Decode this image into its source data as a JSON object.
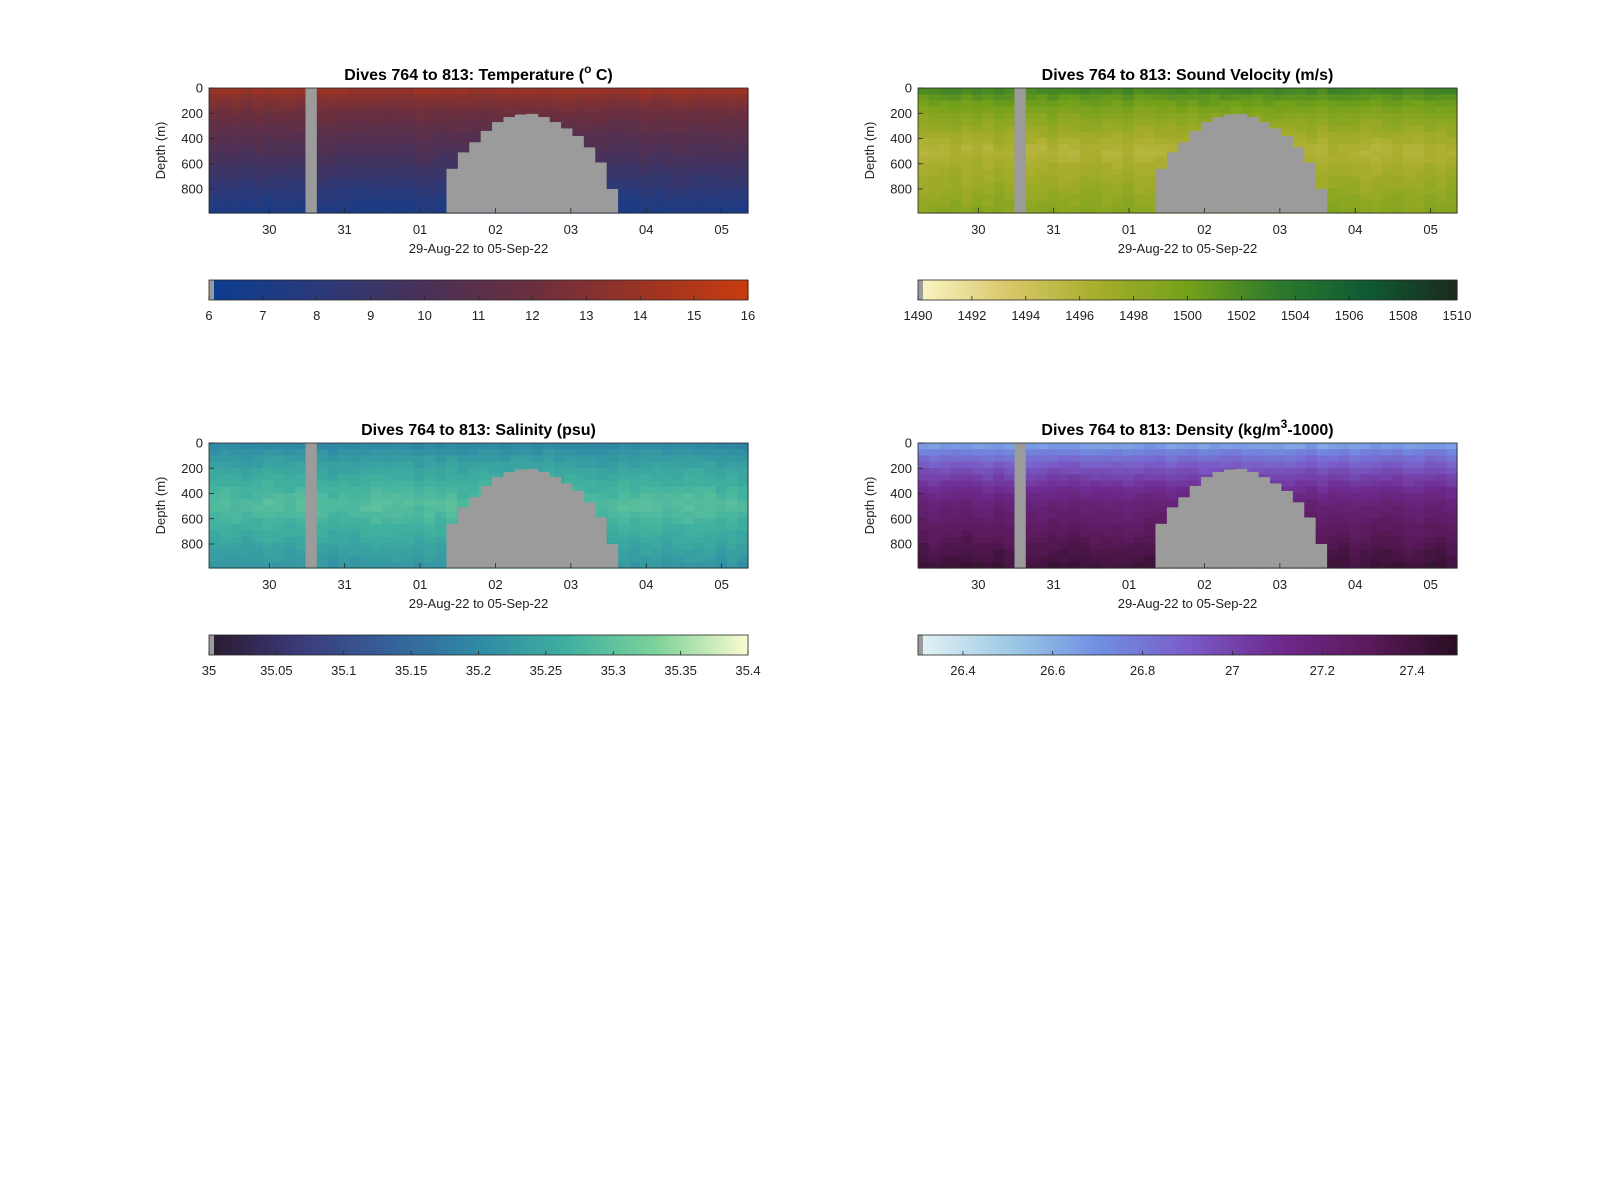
{
  "figure": {
    "mask_color": "#9b9b9b",
    "background": "#ffffff"
  },
  "chart_data": [
    {
      "type": "heatmap",
      "variable": "temperature",
      "title_main": "Dives 764 to 813: Temperature (",
      "title_sup": "o",
      "title_tail": " C)",
      "xlabel": "29-Aug-22 to 05-Sep-22",
      "ylabel": "Depth (m)",
      "x_range_days": [
        29.2,
        36.35
      ],
      "x_ticks": [
        30,
        31,
        32,
        33,
        34,
        35,
        36
      ],
      "x_tick_labels": [
        "30",
        "31",
        "01",
        "02",
        "03",
        "04",
        "05"
      ],
      "y_range": [
        0,
        990
      ],
      "y_ticks": [
        0,
        200,
        400,
        600,
        800
      ],
      "y_tick_labels": [
        "0",
        "200",
        "400",
        "600",
        "800"
      ],
      "colorbar": {
        "range": [
          6,
          16
        ],
        "ticks": [
          6,
          7,
          8,
          9,
          10,
          11,
          12,
          13,
          14,
          15,
          16
        ],
        "tick_labels": [
          "6",
          "7",
          "8",
          "9",
          "10",
          "11",
          "12",
          "13",
          "14",
          "15",
          "16"
        ],
        "colors": [
          "#0b3d91",
          "#2a3a7a",
          "#4a3158",
          "#6b2f3e",
          "#9a3324",
          "#c83c0f"
        ]
      },
      "profile": {
        "surface": 14.6,
        "mid": 10.2,
        "deep": 7.0
      }
    },
    {
      "type": "heatmap",
      "variable": "sound_velocity",
      "title_main": "Dives 764 to 813: Sound Velocity (m/s)",
      "title_sup": "",
      "title_tail": "",
      "xlabel": "29-Aug-22 to 05-Sep-22",
      "ylabel": "Depth (m)",
      "x_range_days": [
        29.2,
        36.35
      ],
      "x_ticks": [
        30,
        31,
        32,
        33,
        34,
        35,
        36
      ],
      "x_tick_labels": [
        "30",
        "31",
        "01",
        "02",
        "03",
        "04",
        "05"
      ],
      "y_range": [
        0,
        990
      ],
      "y_ticks": [
        0,
        200,
        400,
        600,
        800
      ],
      "y_tick_labels": [
        "0",
        "200",
        "400",
        "600",
        "800"
      ],
      "colorbar": {
        "range": [
          1490,
          1510
        ],
        "ticks": [
          1490,
          1492,
          1494,
          1496,
          1498,
          1500,
          1502,
          1504,
          1506,
          1508,
          1510
        ],
        "tick_labels": [
          "1490",
          "1492",
          "1494",
          "1496",
          "1498",
          "1500",
          "1502",
          "1504",
          "1506",
          "1508",
          "1510"
        ],
        "colors": [
          "#fbf6c6",
          "#d9c86a",
          "#a7ad2c",
          "#74a11a",
          "#2e7a2c",
          "#0f5a33",
          "#1b2a1d"
        ]
      },
      "profile": {
        "surface": 1503.5,
        "mid": 1496.0,
        "deep": 1498.8
      }
    },
    {
      "type": "heatmap",
      "variable": "salinity",
      "title_main": "Dives 764 to 813: Salinity (psu)",
      "title_sup": "",
      "title_tail": "",
      "xlabel": "29-Aug-22 to 05-Sep-22",
      "ylabel": "Depth (m)",
      "x_range_days": [
        29.2,
        36.35
      ],
      "x_ticks": [
        30,
        31,
        32,
        33,
        34,
        35,
        36
      ],
      "x_tick_labels": [
        "30",
        "31",
        "01",
        "02",
        "03",
        "04",
        "05"
      ],
      "y_range": [
        0,
        990
      ],
      "y_ticks": [
        0,
        200,
        400,
        600,
        800
      ],
      "y_tick_labels": [
        "0",
        "200",
        "400",
        "600",
        "800"
      ],
      "colorbar": {
        "range": [
          35,
          35.4
        ],
        "ticks": [
          35,
          35.05,
          35.1,
          35.15,
          35.2,
          35.25,
          35.3,
          35.35,
          35.4
        ],
        "tick_labels": [
          "35",
          "35.05",
          "35.1",
          "35.15",
          "35.2",
          "35.25",
          "35.3",
          "35.35",
          "35.4"
        ],
        "colors": [
          "#2a1a2e",
          "#3b3a78",
          "#35609a",
          "#2f8aa5",
          "#3fb09f",
          "#7fd39a",
          "#fbfbd0"
        ]
      },
      "profile": {
        "surface": 35.18,
        "mid": 35.29,
        "deep": 35.22
      }
    },
    {
      "type": "heatmap",
      "variable": "density",
      "title_main": "Dives 764 to 813: Density (kg/m",
      "title_sup": "3",
      "title_tail": "-1000)",
      "xlabel": "29-Aug-22 to 05-Sep-22",
      "ylabel": "Depth (m)",
      "x_range_days": [
        29.2,
        36.35
      ],
      "x_ticks": [
        30,
        31,
        32,
        33,
        34,
        35,
        36
      ],
      "x_tick_labels": [
        "30",
        "31",
        "01",
        "02",
        "03",
        "04",
        "05"
      ],
      "y_range": [
        0,
        990
      ],
      "y_ticks": [
        0,
        200,
        400,
        600,
        800
      ],
      "y_tick_labels": [
        "0",
        "200",
        "400",
        "600",
        "800"
      ],
      "colorbar": {
        "range": [
          26.3,
          27.5
        ],
        "ticks": [
          26.4,
          26.6,
          26.8,
          27,
          27.2,
          27.4
        ],
        "tick_labels": [
          "26.4",
          "26.6",
          "26.8",
          "27",
          "27.2",
          "27.4"
        ],
        "colors": [
          "#e6f3f5",
          "#9fcbe6",
          "#6f90e2",
          "#7a5cc8",
          "#6e2a8e",
          "#5b1a5c",
          "#2a0d22"
        ]
      },
      "profile": {
        "surface": 26.55,
        "mid": 27.2,
        "deep": 27.42
      }
    }
  ],
  "data_gap": {
    "day_start": 30.48,
    "day_end": 30.63
  },
  "bathymetry_mask": {
    "day_start": 32.35,
    "day_end": 34.62,
    "top_depth": [
      640,
      510,
      430,
      340,
      270,
      230,
      210,
      205,
      230,
      270,
      320,
      380,
      470,
      590,
      800
    ]
  }
}
